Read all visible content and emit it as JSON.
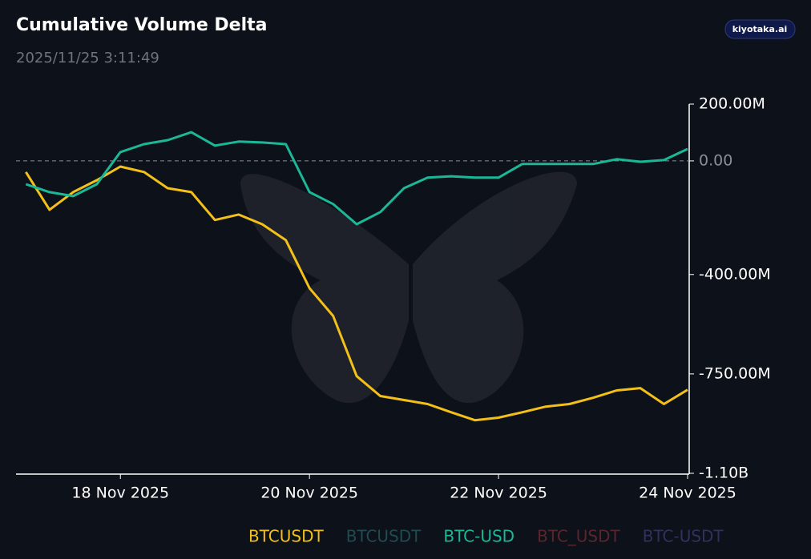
{
  "chart_data": {
    "type": "line",
    "title": "Cumulative Volume Delta",
    "subtitle": "2025/11/25 3:11:49",
    "brand": "kiyotaka.ai",
    "x": [
      "2025-11-17T00:00",
      "2025-11-17T06:00",
      "2025-11-17T12:00",
      "2025-11-17T18:00",
      "2025-11-18T00:00",
      "2025-11-18T06:00",
      "2025-11-18T12:00",
      "2025-11-18T18:00",
      "2025-11-19T00:00",
      "2025-11-19T06:00",
      "2025-11-19T12:00",
      "2025-11-19T18:00",
      "2025-11-20T00:00",
      "2025-11-20T06:00",
      "2025-11-20T12:00",
      "2025-11-20T18:00",
      "2025-11-21T00:00",
      "2025-11-21T06:00",
      "2025-11-21T12:00",
      "2025-11-21T18:00",
      "2025-11-22T00:00",
      "2025-11-22T06:00",
      "2025-11-22T12:00",
      "2025-11-22T18:00",
      "2025-11-23T00:00",
      "2025-11-23T06:00",
      "2025-11-23T12:00",
      "2025-11-23T18:00",
      "2025-11-24T00:00"
    ],
    "xlim": [
      "2025-11-16T21:30",
      "2025-11-24T00:00"
    ],
    "xticks": [
      {
        "value": "2025-11-18T00:00",
        "label": "18 Nov 2025"
      },
      {
        "value": "2025-11-20T00:00",
        "label": "20 Nov 2025"
      },
      {
        "value": "2025-11-22T00:00",
        "label": "22 Nov 2025"
      },
      {
        "value": "2025-11-24T00:00",
        "label": "24 Nov 2025"
      }
    ],
    "ylim": [
      -1100000000,
      200000000
    ],
    "yticks": [
      {
        "value": 200000000,
        "label": "200.00M"
      },
      {
        "value": 0,
        "label": "0.00"
      },
      {
        "value": -400000000,
        "label": "-400.00M"
      },
      {
        "value": -750000000,
        "label": "-750.00M"
      },
      {
        "value": -1100000000,
        "label": "-1.10B"
      }
    ],
    "zero_line": true,
    "series": [
      {
        "name": "BTCUSDT",
        "color": "#f2c019",
        "values": [
          -39000000,
          -172000000,
          -110000000,
          -68000000,
          -20000000,
          -39000000,
          -96000000,
          -110000000,
          -208000000,
          -189000000,
          -223000000,
          -279000000,
          -448000000,
          -546000000,
          -758000000,
          -828000000,
          -842000000,
          -856000000,
          -885000000,
          -913000000,
          -904000000,
          -885000000,
          -865000000,
          -856000000,
          -834000000,
          -808000000,
          -800000000,
          -856000000,
          -806000000
        ]
      },
      {
        "name": "BTC-USD",
        "color": "#1bb897",
        "values": [
          -82000000,
          -110000000,
          -124000000,
          -82000000,
          31000000,
          59000000,
          73000000,
          101000000,
          54000000,
          68000000,
          65000000,
          59000000,
          -110000000,
          -152000000,
          -223000000,
          -180000000,
          -96000000,
          -59000000,
          -54000000,
          -59000000,
          -59000000,
          -11000000,
          -11000000,
          -11000000,
          -11000000,
          6000000,
          -3000000,
          3000000,
          42000000
        ]
      }
    ],
    "legend": [
      {
        "name": "BTCUSDT",
        "color": "#f2c019"
      },
      {
        "name": "BTCUSDT",
        "color": "#1f4c52"
      },
      {
        "name": "BTC-USD",
        "color": "#1bb897"
      },
      {
        "name": "BTC_USDT",
        "color": "#5c252c"
      },
      {
        "name": "BTC-USDT",
        "color": "#33305e"
      }
    ]
  }
}
